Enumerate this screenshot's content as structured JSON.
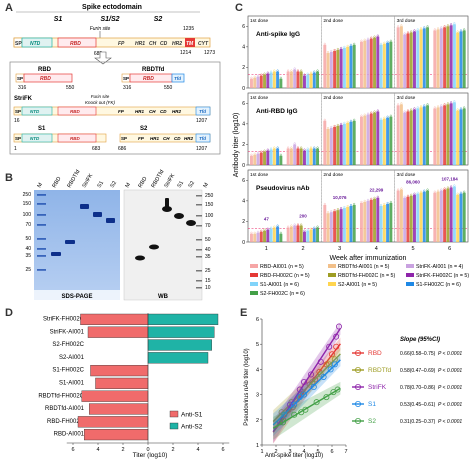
{
  "panelA": {
    "label": "A",
    "title": "Spike ectodomain",
    "s1": "S1",
    "s1s2": "S1/S2",
    "s2": "S2",
    "furin": "Furin site",
    "n1235": "1235",
    "n685": "685",
    "n1214": "1214",
    "n1273": "1273",
    "domains": [
      "SP",
      "NTD",
      "RBD",
      "FP",
      "HR1",
      "CH",
      "CD",
      "HR2",
      "TM",
      "CYT"
    ],
    "rbd": {
      "name": "RBD",
      "start": "316",
      "end": "550"
    },
    "rbdtfd": {
      "name": "RBDTfd",
      "start": "316",
      "end": "550",
      "tag": "Tfd"
    },
    "strifk": {
      "name": "StriFK",
      "furin": "Furin site",
      "ko": "Knock out (FK)",
      "start": "16",
      "end": "1207"
    },
    "s1c": {
      "name": "S1",
      "start": "1",
      "end": "683"
    },
    "s2c": {
      "name": "S2",
      "start": "686",
      "end": "1207"
    }
  },
  "panelB": {
    "label": "B",
    "mw_left": [
      "250",
      "150",
      "100",
      "70",
      "50",
      "40",
      "35",
      "25"
    ],
    "lanes_left": [
      "M",
      "RBD",
      "RBDTfd",
      "StriFK",
      "S1",
      "S2"
    ],
    "lanes_right": [
      "M",
      "RBD",
      "RBDTfd",
      "StriFK",
      "S1",
      "S2"
    ],
    "mw_right": [
      "250",
      "150",
      "100",
      "70",
      "50",
      "40",
      "35",
      "25",
      "15",
      "10"
    ],
    "caption_left": "SDS-PAGE",
    "caption_right": "WB",
    "m_right": "M"
  },
  "panelC": {
    "label": "C",
    "ylabel": "Antibody titer (log10)",
    "xlabel": "Week after immunization",
    "doses": [
      "1st dose",
      "2nd dose",
      "3rd dose"
    ],
    "subplots": [
      "Anti-spike IgG",
      "Anti-RBD IgG",
      "Pseudovirus nAb"
    ],
    "yticks": [
      "0",
      "2",
      "4",
      "6"
    ],
    "weeks": [
      "1",
      "2",
      "3",
      "4",
      "5",
      "6"
    ],
    "nab_labels": [
      "47",
      "200",
      "10,076",
      "22,299",
      "86,060",
      "107,184"
    ],
    "legend": [
      {
        "name": "RBD-AI001 (n = 5)",
        "color": "#f6a6a6"
      },
      {
        "name": "RBDTfd-AI001 (n = 5)",
        "color": "#f2c08a"
      },
      {
        "name": "StriFK-AI001 (n = 4)",
        "color": "#c9a2e0"
      },
      {
        "name": "RBD-FH002C (n = 5)",
        "color": "#e53935"
      },
      {
        "name": "RBDTfd-FH002C (n = 5)",
        "color": "#9e9d24"
      },
      {
        "name": "StriFK-FH002C (n = 5)",
        "color": "#8e24aa"
      },
      {
        "name": "S1-AI001 (n = 6)",
        "color": "#81d4fa"
      },
      {
        "name": "S2-AI001 (n = 5)",
        "color": "#ffd54f"
      },
      {
        "name": "S1-FH002C (n = 6)",
        "color": "#1e88e5"
      },
      {
        "name": "S2-FH002C (n = 6)",
        "color": "#43a047"
      }
    ]
  },
  "panelD": {
    "label": "D",
    "xlabel": "Titer (log10)",
    "xticks": [
      "6",
      "4",
      "2",
      "0",
      "2",
      "4",
      "6"
    ],
    "legend": [
      {
        "name": "Anti-S1",
        "color": "#f06b6b"
      },
      {
        "name": "Anti-S2",
        "color": "#1fb3a6"
      }
    ]
  },
  "panelE": {
    "label": "E",
    "xlabel": "Anti-spike titer (log10)",
    "ylabel": "Pseudovirus nAb titer (log10)",
    "slope_header": "Slope (95%CI)",
    "xticks": [
      "1",
      "2",
      "3",
      "4",
      "5",
      "6",
      "7"
    ],
    "yticks": [
      "1",
      "2",
      "3",
      "4",
      "5",
      "6"
    ]
  },
  "chart_data": [
    {
      "type": "bar",
      "title": "",
      "xlabel": "Titer (log10)",
      "ylabel": "",
      "categories": [
        "StriFK-FH002C",
        "StriFK-AI001",
        "S2-FH002C",
        "S2-AI001",
        "S1-FH002C",
        "S1-AI001",
        "RBDTfd-FH002C",
        "RBDTfd-AI001",
        "RBD-FH002C",
        "RBD-AI001"
      ],
      "series": [
        {
          "name": "Anti-S1",
          "values": [
            5.4,
            4.8,
            0,
            0,
            4.6,
            4.2,
            5.3,
            4.7,
            5.6,
            5.1
          ]
        },
        {
          "name": "Anti-S2",
          "values": [
            5.6,
            5.3,
            5.1,
            4.8,
            0,
            0,
            0,
            0,
            0,
            0
          ]
        }
      ],
      "xlim": [
        -6.5,
        6.5
      ]
    },
    {
      "type": "scatter",
      "title": "",
      "xlabel": "Anti-spike titer (log10)",
      "ylabel": "Pseudovirus nAb titer (log10)",
      "xlim": [
        1,
        7
      ],
      "ylim": [
        1,
        6
      ],
      "series": [
        {
          "name": "RBD",
          "color": "#e53935",
          "slope": "0.66(0.58–0.75)",
          "p": "P < 0.0001",
          "points": [
            [
              2.5,
              2.0
            ],
            [
              3.2,
              2.5
            ],
            [
              3.8,
              3.0
            ],
            [
              4.4,
              3.4
            ],
            [
              5.1,
              3.9
            ],
            [
              5.6,
              4.2
            ],
            [
              6.0,
              4.6
            ],
            [
              6.3,
              4.9
            ],
            [
              2.9,
              2.4
            ],
            [
              4.8,
              3.6
            ]
          ]
        },
        {
          "name": "RBDTfd",
          "color": "#9e9d24",
          "slope": "0.58(0.47–0.69)",
          "p": "P < 0.0001",
          "points": [
            [
              2.4,
              2.3
            ],
            [
              3.1,
              2.7
            ],
            [
              3.9,
              3.1
            ],
            [
              4.6,
              3.5
            ],
            [
              5.2,
              3.8
            ],
            [
              5.8,
              4.2
            ],
            [
              6.2,
              4.4
            ],
            [
              3.5,
              2.8
            ]
          ]
        },
        {
          "name": "StriFK",
          "color": "#8e24aa",
          "slope": "0.78(0.70–0.86)",
          "p": "P < 0.0001",
          "points": [
            [
              2.3,
              1.9
            ],
            [
              3.0,
              2.6
            ],
            [
              3.7,
              3.2
            ],
            [
              4.5,
              3.8
            ],
            [
              5.2,
              4.3
            ],
            [
              5.8,
              4.9
            ],
            [
              6.3,
              5.3
            ],
            [
              6.5,
              5.7
            ],
            [
              4.0,
              3.5
            ]
          ]
        },
        {
          "name": "S1",
          "color": "#1e88e5",
          "slope": "0.53(0.45–0.61)",
          "p": "P < 0.0001",
          "points": [
            [
              2.6,
              2.2
            ],
            [
              3.3,
              2.6
            ],
            [
              4.0,
              3.0
            ],
            [
              4.7,
              3.3
            ],
            [
              5.4,
              3.7
            ],
            [
              5.9,
              4.0
            ],
            [
              6.2,
              4.2
            ],
            [
              3.7,
              2.9
            ]
          ]
        },
        {
          "name": "S2",
          "color": "#43a047",
          "slope": "0.31(0.25–0.37)",
          "p": "P < 0.0001",
          "points": [
            [
              2.5,
              1.9
            ],
            [
              3.3,
              2.2
            ],
            [
              4.1,
              2.4
            ],
            [
              4.9,
              2.7
            ],
            [
              5.6,
              2.9
            ],
            [
              6.1,
              3.1
            ],
            [
              6.4,
              3.2
            ],
            [
              3.8,
              2.3
            ]
          ]
        }
      ]
    }
  ]
}
